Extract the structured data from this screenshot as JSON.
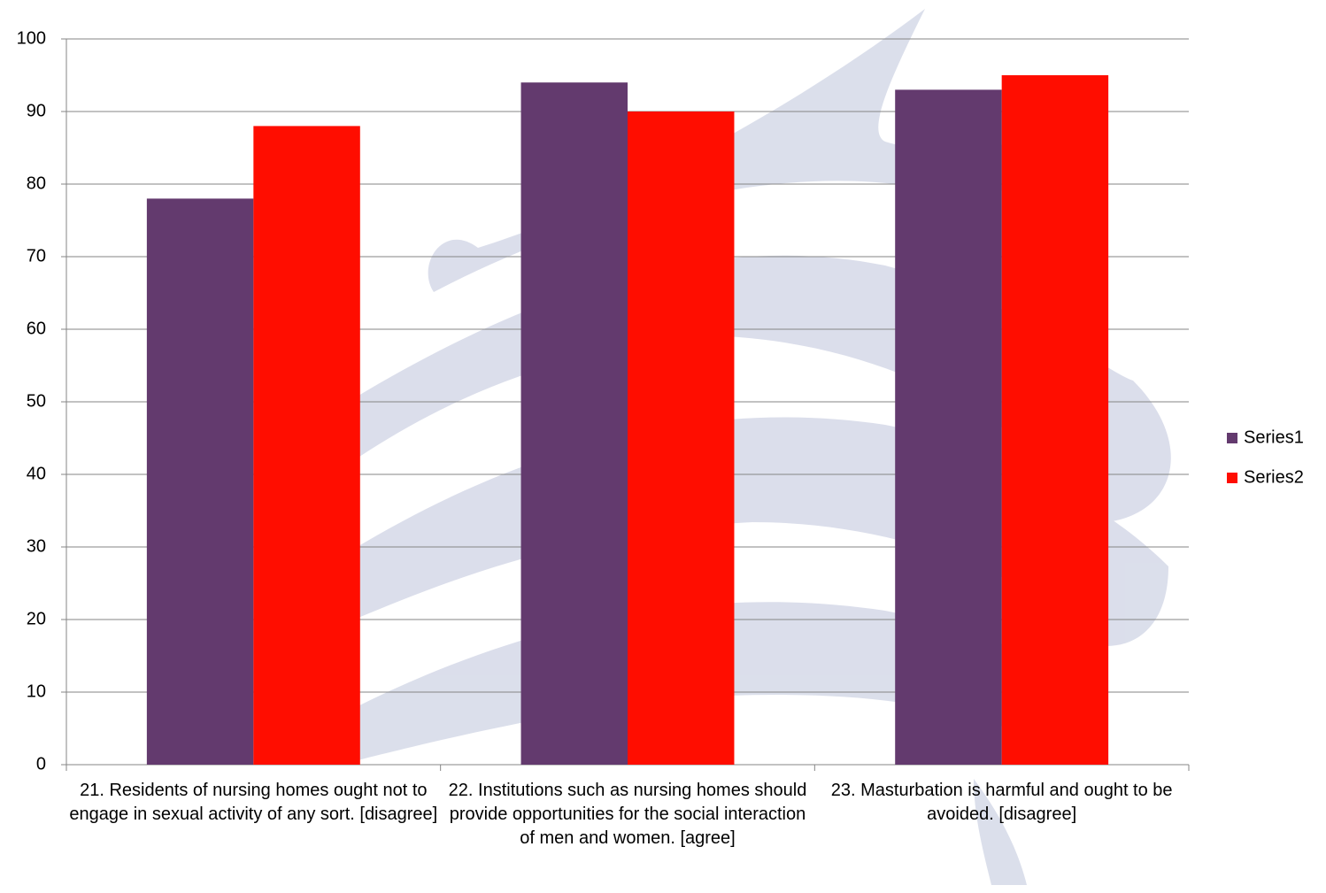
{
  "chart_data": {
    "type": "bar",
    "categories": [
      "21. Residents of nursing homes ought not to engage in sexual activity of any sort. [disagree]",
      "22. Institutions such as nursing homes should provide opportunities for the social interaction of men and women. [agree]",
      "23. Masturbation is harmful and ought to be avoided.  [disagree]"
    ],
    "series": [
      {
        "name": "Series1",
        "color": "#633a6e",
        "values": [
          78,
          94,
          93
        ]
      },
      {
        "name": "Series2",
        "color": "#ff0d00",
        "values": [
          88,
          90,
          95
        ]
      }
    ],
    "ylim": [
      0,
      100
    ],
    "yticks": [
      0,
      10,
      20,
      30,
      40,
      50,
      60,
      70,
      80,
      90,
      100
    ],
    "grid": true,
    "legend": "right"
  }
}
